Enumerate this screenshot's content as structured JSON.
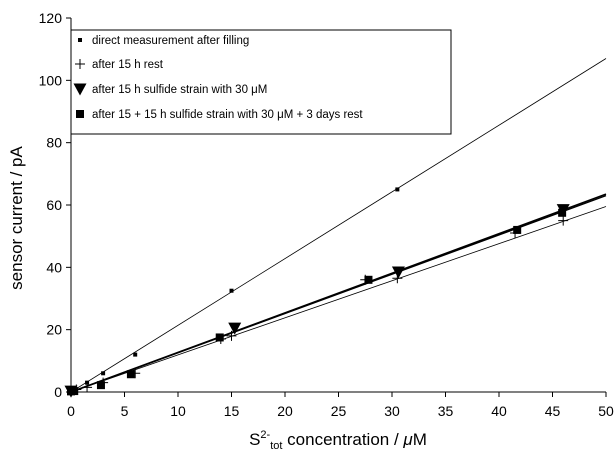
{
  "chart_data": {
    "type": "scatter",
    "title": "",
    "xlabel": {
      "prefix": "S",
      "superscript": "2-",
      "subscript": "tot",
      "rest": " concentration / ",
      "unit_mu": "μ",
      "unit_rest": "M"
    },
    "ylabel": "sensor current / pA",
    "xlim": [
      0,
      50
    ],
    "ylim": [
      0,
      120
    ],
    "x_ticks": [
      0,
      5,
      10,
      15,
      20,
      25,
      30,
      35,
      40,
      45,
      50
    ],
    "y_ticks": [
      0,
      20,
      40,
      60,
      80,
      100,
      120
    ],
    "grid": false,
    "legend_position": "top-left",
    "series": [
      {
        "name": "direct measurement after filling",
        "marker": "small-square",
        "points": [
          [
            0,
            0.3
          ],
          [
            1.5,
            3.0
          ],
          [
            3.0,
            6.0
          ],
          [
            6.0,
            12.0
          ],
          [
            15.0,
            32.5
          ],
          [
            30.5,
            65.0
          ]
        ],
        "fit_line": [
          [
            0,
            0
          ],
          [
            50,
            107
          ]
        ]
      },
      {
        "name": "after 15 h rest",
        "marker": "plus",
        "points": [
          [
            0,
            0
          ],
          [
            0.5,
            0.8
          ],
          [
            1.5,
            1.5
          ],
          [
            3.0,
            3.0
          ],
          [
            6.0,
            6.0
          ],
          [
            14.0,
            17.0
          ],
          [
            15.0,
            18.0
          ],
          [
            27.5,
            36.0
          ],
          [
            30.5,
            36.5
          ],
          [
            41.5,
            51.0
          ],
          [
            46.0,
            55.0
          ]
        ],
        "fit_line": [
          [
            0,
            0
          ],
          [
            50,
            59.5
          ]
        ]
      },
      {
        "name": "after 15 h sulfide strain with 30 μM",
        "marker": "triangle-down",
        "points": [
          [
            0,
            0.3
          ],
          [
            15.3,
            20.5
          ],
          [
            30.6,
            38.5
          ],
          [
            46.0,
            58.5
          ]
        ],
        "fit_line": [
          [
            0,
            0
          ],
          [
            50,
            63.5
          ]
        ]
      },
      {
        "name": "after 15 + 15 h sulfide strain with 30 μM + 3 days rest",
        "marker": "square",
        "points": [
          [
            0,
            0.2
          ],
          [
            0.3,
            0.3
          ],
          [
            2.8,
            2.2
          ],
          [
            5.6,
            5.7
          ],
          [
            13.9,
            17.5
          ],
          [
            27.8,
            36.0
          ],
          [
            41.7,
            52.0
          ],
          [
            45.9,
            57.5
          ]
        ],
        "fit_line": [
          [
            0,
            0
          ],
          [
            50,
            63.0
          ]
        ]
      }
    ]
  }
}
